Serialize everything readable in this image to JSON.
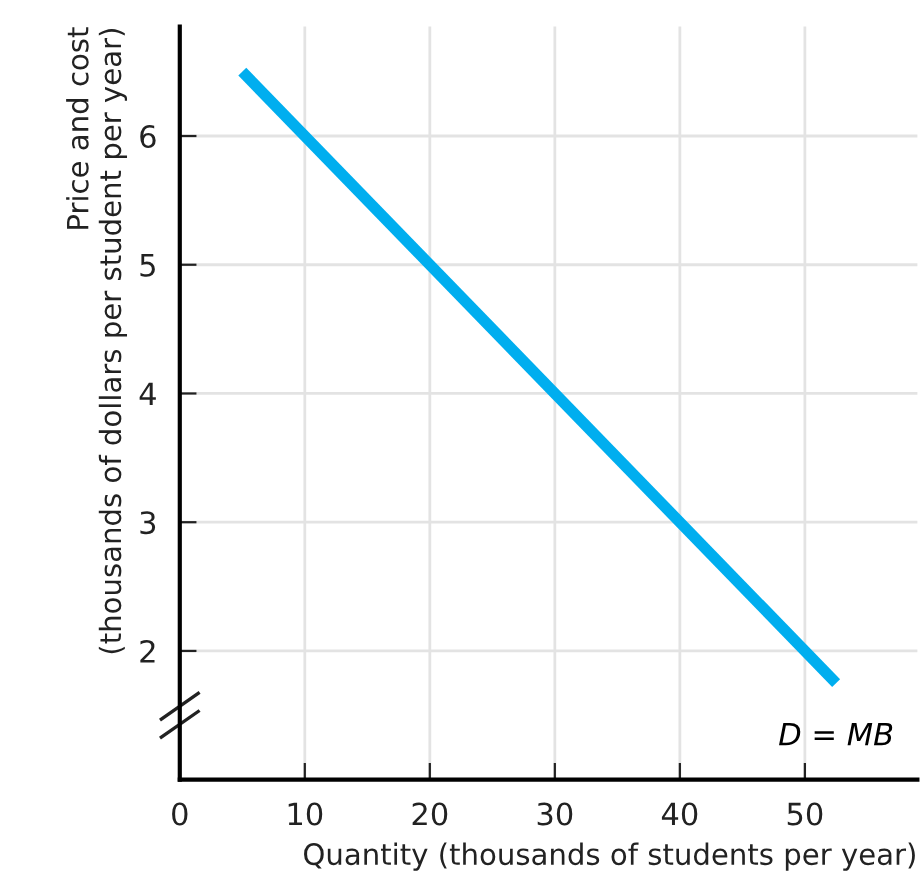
{
  "chart_data": {
    "type": "line",
    "xlabel": "Quantity (thousands of students per year)",
    "ylabel": "Price and cost\n(thousands of dollars per student per year)",
    "x": [
      5,
      52.5
    ],
    "series": [
      {
        "color": "#00aeef",
        "values": [
          6.5,
          1.75
        ]
      }
    ],
    "annotations": [
      {
        "text": "D = MB",
        "x": 52.5,
        "y": 1.75
      }
    ],
    "xlim": [
      0,
      59
    ],
    "ylim": [
      1,
      6.85
    ],
    "xticks": [
      0,
      10,
      20,
      30,
      40,
      50
    ],
    "yticks": [
      2,
      3,
      4,
      5,
      6
    ],
    "grid": true,
    "legend": false,
    "marker": "none",
    "line_style": "solid"
  }
}
